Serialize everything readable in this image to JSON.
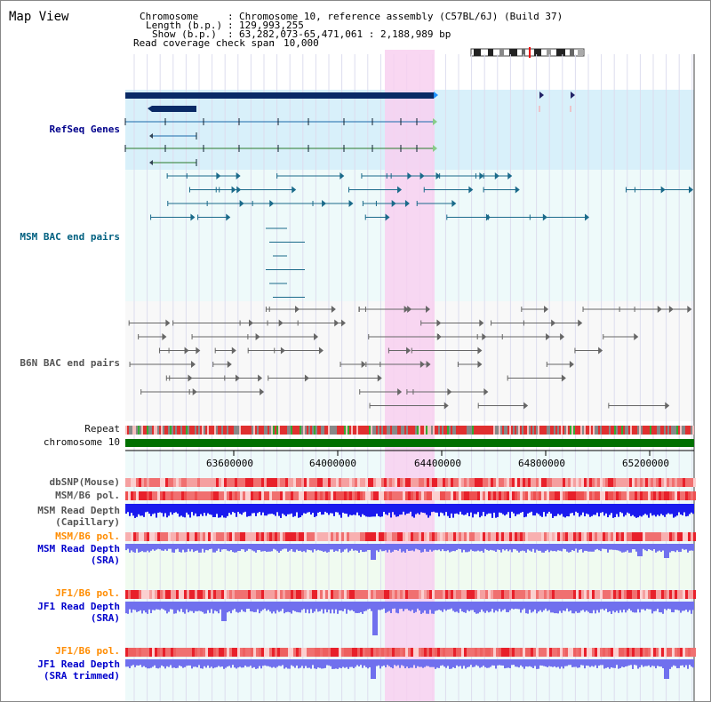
{
  "view_title": "Map View",
  "header": {
    "chromosome_key": "Chromosome",
    "chromosome_value": "Chromosome 10, reference assembly (C57BL/6J) (Build 37)",
    "length_key": "Length (b.p.)",
    "length_value": "129,993,255",
    "show_key": "Show (b.p.)",
    "show_value": "63,282,073-65,471,061 : 2,188,989 bp",
    "span_key": "Read coverage check span",
    "span_value": "10,000"
  },
  "tracks": {
    "refseq": "RefSeq Genes",
    "msm_bac": "MSM BAC end pairs",
    "b6n_bac": "B6N BAC end pairs",
    "repeat": "Repeat",
    "chromosome": "chromosome 10",
    "dbsnp": "dbSNP(Mouse)",
    "msm_pol1": "MSM/B6 pol.",
    "msm_depth_cap_1": "MSM Read Depth",
    "msm_depth_cap_2": "(Capillary)",
    "msm_pol2": "MSM/B6 pol.",
    "msm_depth_sra_1": "MSM Read Depth",
    "msm_depth_sra_2": "(SRA)",
    "jf1_pol1": "JF1/B6 pol.",
    "jf1_depth_sra_1": "JF1 Read Depth",
    "jf1_depth_sra_2": "(SRA)",
    "jf1_pol2": "JF1/B6 pol.",
    "jf1_depth_trim_1": "JF1 Read Depth",
    "jf1_depth_trim_2": "(SRA trimmed)"
  },
  "axis_ticks": [
    "63600000",
    "64000000",
    "64400000",
    "64800000",
    "65200000"
  ],
  "colors": {
    "refseq_label": "#00008b",
    "msm_label": "#006080",
    "b6n_label": "#555555",
    "orange_label": "#ff8c00",
    "blue_label": "#0000cc",
    "highlight": "#f8d0f0",
    "refseq_bg": "#d8f0fa",
    "track_bg": "#eefafa",
    "chrom_bar": "#007000",
    "depth_blue": "#1a1aee",
    "depth_light": "#7070ee"
  }
}
